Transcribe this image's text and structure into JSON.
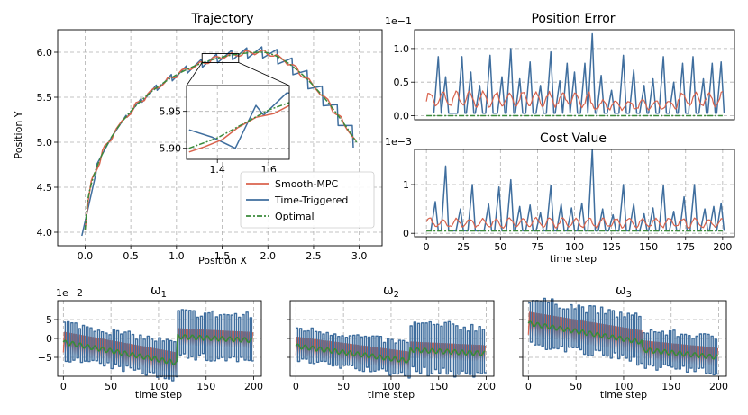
{
  "colors": {
    "smooth": "#d9634d",
    "triggered": "#3f6e9e",
    "optimal": "#3a8a3a"
  },
  "legend": {
    "smooth": "Smooth-MPC",
    "triggered": "Time-Triggered",
    "optimal": "Optimal"
  },
  "chart_data": [
    {
      "id": "trajectory",
      "type": "line",
      "title": "Trajectory",
      "xlabel": "Position X",
      "ylabel": "Position Y",
      "xlim": [
        -0.3,
        3.25
      ],
      "ylim": [
        3.85,
        6.25
      ],
      "xticks": [
        "0.0",
        "0.5",
        "1.0",
        "1.5",
        "2.0",
        "2.5",
        "3.0"
      ],
      "yticks": [
        "4.0",
        "4.5",
        "5.0",
        "5.5",
        "6.0"
      ],
      "x_tick_values": [
        0,
        0.5,
        1,
        1.5,
        2,
        2.5,
        3
      ],
      "y_tick_values": [
        4,
        4.5,
        5,
        5.5,
        6
      ],
      "path": {
        "start": [
          0,
          4.02
        ],
        "apex": [
          1.95,
          6.0
        ],
        "end": [
          2.97,
          5.0
        ]
      },
      "inset": {
        "xlim": [
          1.28,
          1.68
        ],
        "ylim": [
          5.885,
          5.985
        ],
        "xticks": [
          "1.4",
          "1.6"
        ],
        "yticks": [
          "5.90",
          "5.95"
        ],
        "x_tick_values": [
          1.4,
          1.6
        ],
        "y_tick_values": [
          5.9,
          5.95
        ]
      }
    },
    {
      "id": "position_error",
      "type": "line",
      "title": "Position Error",
      "multiplier": "1e−1",
      "xlim": [
        -8,
        208
      ],
      "ylim": [
        -0.06,
        1.28
      ],
      "yticks": [
        "0.0",
        "0.5",
        "1.0"
      ],
      "y_tick_values": [
        0,
        0.5,
        1.0
      ],
      "triggered_peaks": [
        [
          8,
          0.88
        ],
        [
          13,
          0.58
        ],
        [
          24,
          0.88
        ],
        [
          30,
          0.65
        ],
        [
          36,
          0.45
        ],
        [
          43,
          0.9
        ],
        [
          51,
          0.58
        ],
        [
          57,
          1.0
        ],
        [
          63,
          0.55
        ],
        [
          70,
          0.8
        ],
        [
          77,
          0.45
        ],
        [
          84,
          0.95
        ],
        [
          90,
          0.52
        ],
        [
          95,
          0.78
        ],
        [
          100,
          0.65
        ],
        [
          107,
          0.78
        ],
        [
          112,
          1.22
        ],
        [
          118,
          0.6
        ],
        [
          125,
          0.38
        ],
        [
          133,
          0.9
        ],
        [
          140,
          0.68
        ],
        [
          147,
          0.45
        ],
        [
          153,
          0.55
        ],
        [
          160,
          0.88
        ],
        [
          167,
          0.5
        ],
        [
          173,
          0.78
        ],
        [
          180,
          0.88
        ],
        [
          187,
          0.55
        ],
        [
          193,
          0.78
        ],
        [
          199,
          0.8
        ]
      ],
      "smooth_level": 0.25,
      "optimal_level": 0.0
    },
    {
      "id": "cost_value",
      "type": "line",
      "title": "Cost Value",
      "multiplier": "1e−3",
      "xlim": [
        -8,
        208
      ],
      "ylim": [
        -0.07,
        1.72
      ],
      "xlabel": "time step",
      "xticks": [
        "0",
        "25",
        "50",
        "75",
        "100",
        "125",
        "150",
        "175",
        "200"
      ],
      "x_tick_values": [
        0,
        25,
        50,
        75,
        100,
        125,
        150,
        175,
        200
      ],
      "yticks": [
        "0",
        "1"
      ],
      "y_tick_values": [
        0,
        1
      ],
      "triggered_peaks": [
        [
          6,
          0.65
        ],
        [
          13,
          1.38
        ],
        [
          23,
          0.5
        ],
        [
          31,
          1.0
        ],
        [
          42,
          0.6
        ],
        [
          49,
          0.95
        ],
        [
          57,
          1.1
        ],
        [
          63,
          0.55
        ],
        [
          70,
          0.58
        ],
        [
          77,
          0.42
        ],
        [
          84,
          0.98
        ],
        [
          91,
          0.6
        ],
        [
          98,
          0.52
        ],
        [
          105,
          0.62
        ],
        [
          112,
          1.72
        ],
        [
          119,
          0.5
        ],
        [
          126,
          0.38
        ],
        [
          133,
          1.0
        ],
        [
          140,
          0.6
        ],
        [
          147,
          0.4
        ],
        [
          153,
          0.52
        ],
        [
          160,
          0.98
        ],
        [
          167,
          0.45
        ],
        [
          174,
          0.75
        ],
        [
          181,
          1.0
        ],
        [
          188,
          0.5
        ],
        [
          194,
          0.55
        ],
        [
          199,
          0.62
        ]
      ],
      "smooth_level": 0.22,
      "optimal_level": 0.05
    },
    {
      "id": "omega_1",
      "type": "line",
      "title": "ω",
      "title_sub": "1",
      "multiplier": "1e−2",
      "xlabel": "time step",
      "xlim": [
        -6,
        208
      ],
      "ylim": [
        -10,
        10
      ],
      "xticks": [
        "0",
        "50",
        "100",
        "150",
        "200"
      ],
      "x_tick_values": [
        0,
        50,
        100,
        150,
        200
      ],
      "yticks": [
        "5",
        "0",
        "−5"
      ],
      "y_tick_values": [
        5,
        0,
        -5
      ],
      "segments": [
        {
          "x": [
            0,
            120
          ],
          "center_from": -1.0,
          "center_to": -6.5,
          "amp_triggered": 6,
          "amp_smooth": 4.5
        },
        {
          "x": [
            120,
            200
          ],
          "center_from": 0.5,
          "center_to": -0.5,
          "amp_triggered": 7.5,
          "amp_smooth": 3.5
        }
      ]
    },
    {
      "id": "omega_2",
      "type": "line",
      "title": "ω",
      "title_sub": "2",
      "xlabel": "time step",
      "xlim": [
        -6,
        208
      ],
      "ylim": [
        -10,
        10
      ],
      "xticks": [
        "0",
        "50",
        "100",
        "150",
        "200"
      ],
      "x_tick_values": [
        0,
        50,
        100,
        150,
        200
      ],
      "segments": [
        {
          "x": [
            0,
            120
          ],
          "center_from": -2.0,
          "center_to": -6.0,
          "amp_triggered": 5.5,
          "amp_smooth": 4.0
        },
        {
          "x": [
            120,
            200
          ],
          "center_from": -3.0,
          "center_to": -4.0,
          "amp_triggered": 8.0,
          "amp_smooth": 3.5
        }
      ]
    },
    {
      "id": "omega_3",
      "type": "line",
      "title": "ω",
      "title_sub": "3",
      "xlabel": "time step",
      "xlim": [
        -6,
        208
      ],
      "ylim": [
        -10,
        10
      ],
      "xticks": [
        "0",
        "50",
        "100",
        "150",
        "200"
      ],
      "x_tick_values": [
        0,
        50,
        100,
        150,
        200
      ],
      "segments": [
        {
          "x": [
            0,
            120
          ],
          "center_from": 4.0,
          "center_to": -1.0,
          "amp_triggered": 7.5,
          "amp_smooth": 5.0
        },
        {
          "x": [
            120,
            200
          ],
          "center_from": -3.0,
          "center_to": -5.0,
          "amp_triggered": 6.0,
          "amp_smooth": 4.0
        }
      ]
    }
  ]
}
